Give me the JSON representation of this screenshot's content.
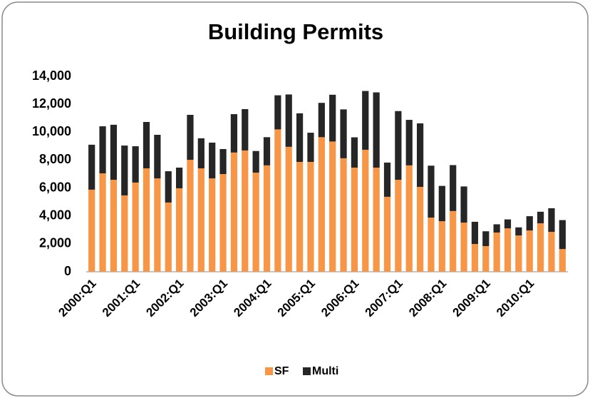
{
  "chart_data": {
    "type": "stacked_bar",
    "title": "Building Permits",
    "categories": [
      "2000:Q1",
      null,
      null,
      null,
      "2001:Q1",
      null,
      null,
      null,
      "2002:Q1",
      null,
      null,
      null,
      "2003:Q1",
      null,
      null,
      null,
      "2004:Q1",
      null,
      null,
      null,
      "2005:Q1",
      null,
      null,
      null,
      "2006:Q1",
      null,
      null,
      null,
      "2007:Q1",
      null,
      null,
      null,
      "2008:Q1",
      null,
      null,
      null,
      "2009:Q1",
      null,
      null,
      null,
      "2010:Q1",
      null,
      null,
      null
    ],
    "series": [
      {
        "name": "SF",
        "color": "#f79646",
        "values": [
          5880,
          7050,
          6590,
          5470,
          6390,
          7410,
          6690,
          4960,
          5980,
          8020,
          7410,
          6690,
          7000,
          8540,
          8690,
          7100,
          7620,
          10200,
          8950,
          7870,
          7870,
          9640,
          9330,
          8130,
          7460,
          8740,
          7460,
          5370,
          6590,
          7620,
          6080,
          3880,
          3620,
          4350,
          3520,
          1990,
          1840,
          2810,
          3110,
          2600,
          2960,
          3470,
          2860,
          1630
        ]
      },
      {
        "name": "Multi",
        "color": "#262626",
        "values": [
          3220,
          3370,
          3940,
          3570,
          2600,
          3320,
          3120,
          2240,
          1480,
          3220,
          2150,
          2560,
          1790,
          2750,
          2960,
          1550,
          2020,
          2440,
          3750,
          3480,
          2090,
          2460,
          3350,
          3500,
          2170,
          4210,
          5390,
          2450,
          4920,
          3260,
          4550,
          3720,
          2530,
          3290,
          2590,
          1590,
          1060,
          590,
          640,
          580,
          1020,
          830,
          1690,
          2070
        ]
      }
    ],
    "ylim": [
      0,
      14000
    ],
    "yticks": [
      0,
      {
        "value": 2000,
        "label": "2,000"
      },
      {
        "value": 4000,
        "label": "4,000"
      },
      {
        "value": 6000,
        "label": "6,000"
      },
      {
        "value": 8000,
        "label": "8,000"
      },
      {
        "value": 10000,
        "label": "10,000"
      },
      {
        "value": 12000,
        "label": "12,000"
      },
      {
        "value": 14000,
        "label": "14,000"
      }
    ],
    "legend": "bottom"
  }
}
